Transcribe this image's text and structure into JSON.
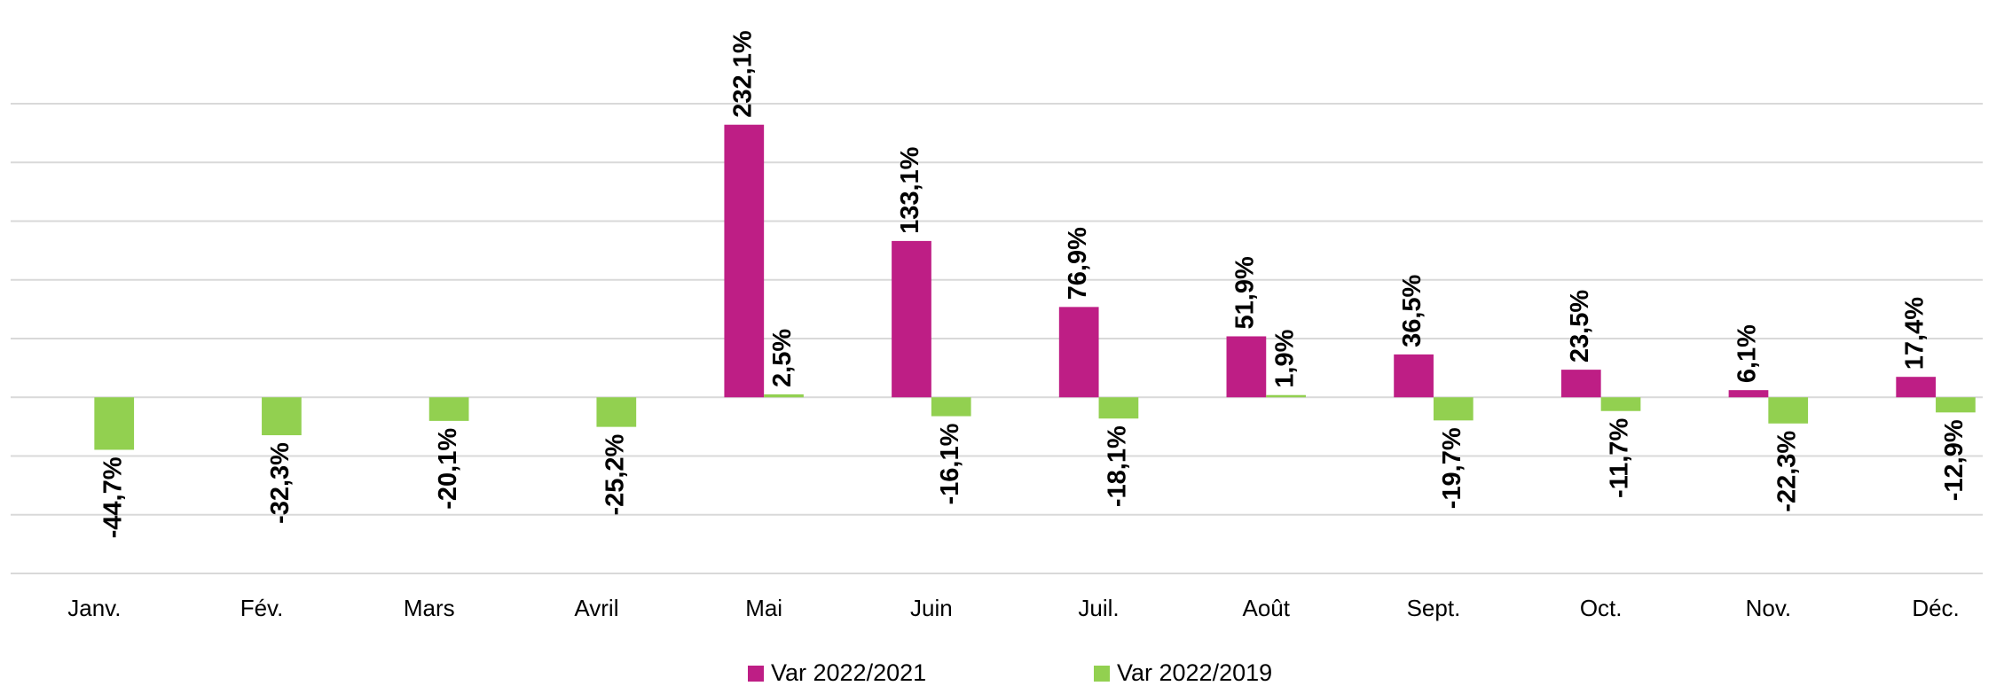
{
  "chart_data": {
    "type": "bar",
    "categories": [
      "Janv.",
      "Fév.",
      "Mars",
      "Avril",
      "Mai",
      "Juin",
      "Juil.",
      "Août",
      "Sept.",
      "Oct.",
      "Nov.",
      "Déc."
    ],
    "series": [
      {
        "name": "Var 2022/2021",
        "color": "#be1e85",
        "values": [
          null,
          null,
          null,
          null,
          232.1,
          133.1,
          76.9,
          51.9,
          36.5,
          23.5,
          6.1,
          17.4
        ],
        "value_labels": [
          null,
          null,
          null,
          null,
          "232,1%",
          "133,1%",
          "76,9%",
          "51,9%",
          "36,5%",
          "23,5%",
          "6,1%",
          "17,4%"
        ]
      },
      {
        "name": "Var 2022/2019",
        "color": "#92d050",
        "values": [
          -44.7,
          -32.3,
          -20.1,
          -25.2,
          2.5,
          -16.1,
          -18.1,
          1.9,
          -19.7,
          -11.7,
          -22.3,
          -12.9
        ],
        "value_labels": [
          "-44,7%",
          "-32,3%",
          "-20,1%",
          "-25,2%",
          "2,5%",
          "-16,1%",
          "-18,1%",
          "1,9%",
          "-19,7%",
          "-11,7%",
          "-22,3%",
          "-12,9%"
        ]
      }
    ],
    "ylim": [
      -150,
      250
    ],
    "yticks": [
      -150,
      -100,
      -50,
      0,
      50,
      100,
      150,
      200,
      250
    ],
    "grid": true,
    "legend": "bottom"
  }
}
